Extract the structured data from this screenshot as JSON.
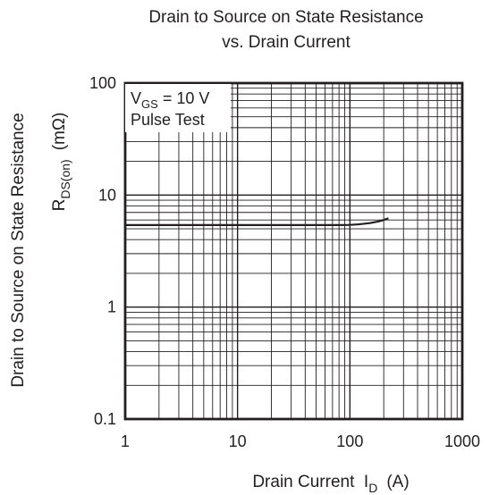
{
  "chart_data": {
    "type": "line",
    "title_line1": "Drain to Source on State Resistance",
    "title_line2": "vs. Drain Current",
    "ylabel_line1": "Drain to Source on State Resistance",
    "ylabel_line2_main": "R",
    "ylabel_line2_sub": "DS(on)",
    "ylabel_line2_unit": "(mΩ)",
    "xlabel_main": "Drain Current  I",
    "xlabel_sub": "D",
    "xlabel_unit": "(A)",
    "x_scale": "log",
    "y_scale": "log",
    "xlim": [
      1,
      1000
    ],
    "ylim": [
      0.1,
      100
    ],
    "x_ticks": [
      "1",
      "10",
      "100",
      "1000"
    ],
    "y_ticks": [
      "100",
      "10",
      "1",
      "0.1"
    ],
    "grid": true,
    "annotation": {
      "vgs_main": "V",
      "vgs_sub": "GS",
      "vgs_value": " = 10 V",
      "pulse": "Pulse Test"
    },
    "series": [
      {
        "x": [
          1,
          2,
          5,
          10,
          20,
          50,
          80,
          100,
          120,
          150,
          180,
          200,
          220
        ],
        "y": [
          5.4,
          5.4,
          5.4,
          5.4,
          5.4,
          5.4,
          5.4,
          5.42,
          5.48,
          5.62,
          5.82,
          6.0,
          6.2
        ]
      }
    ]
  }
}
